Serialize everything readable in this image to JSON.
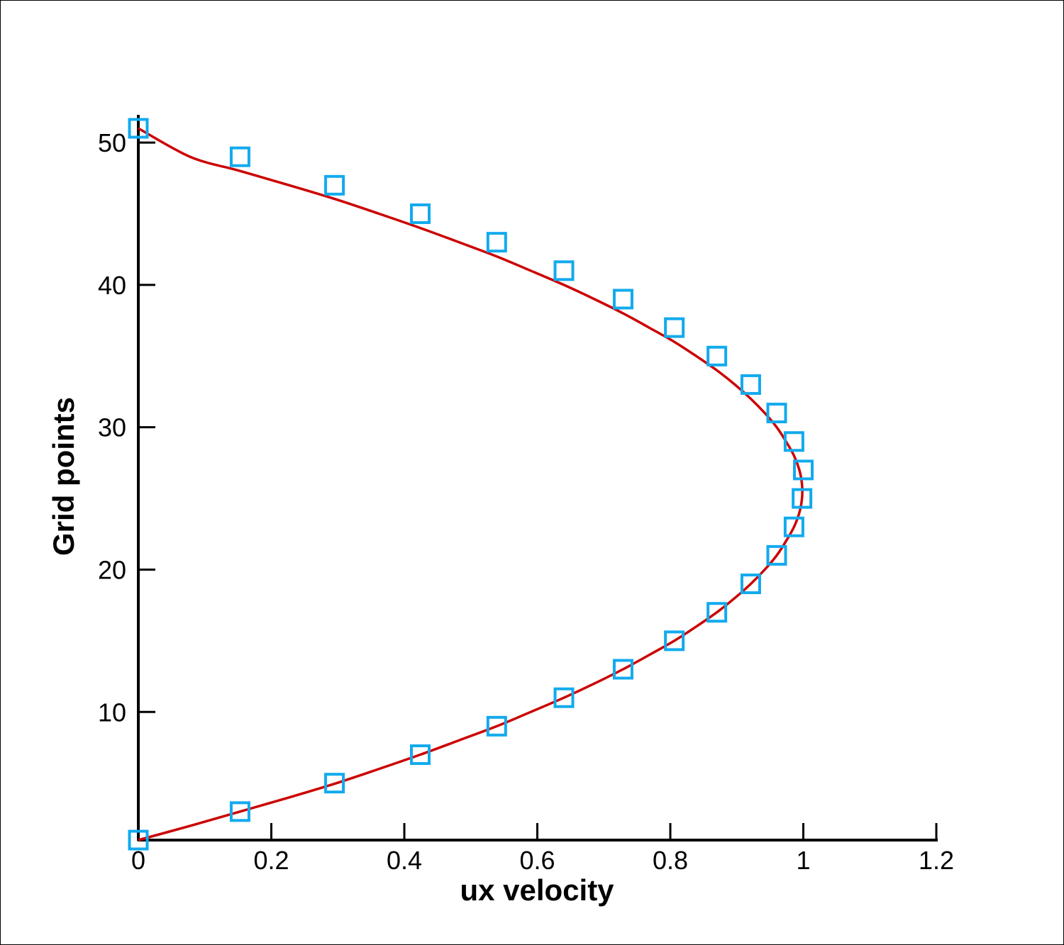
{
  "chart_data": {
    "type": "line",
    "title": "",
    "xlabel": "ux velocity",
    "ylabel": "Grid points",
    "xlim": [
      0,
      1.2
    ],
    "ylim": [
      1,
      52
    ],
    "x_ticks": [
      0,
      0.2,
      0.4,
      0.6,
      0.8,
      1.0,
      1.2
    ],
    "x_tick_labels": [
      "0",
      "0.2",
      "0.4",
      "0.6",
      "0.8",
      "1",
      "1.2"
    ],
    "y_ticks": [
      10,
      20,
      30,
      40,
      50
    ],
    "y_tick_labels": [
      "10",
      "20",
      "30",
      "40",
      "50"
    ],
    "grid": false,
    "legend": "none",
    "series": [
      {
        "kind": "line",
        "color": "#cc0000",
        "x": [
          0,
          0.078,
          0.153,
          0.227,
          0.298,
          0.362,
          0.424,
          0.482,
          0.539,
          0.59,
          0.64,
          0.686,
          0.729,
          0.768,
          0.806,
          0.839,
          0.87,
          0.897,
          0.921,
          0.942,
          0.96,
          0.974,
          0.986,
          0.994,
          0.998,
          0.998,
          0.994,
          0.986,
          0.974,
          0.96,
          0.942,
          0.921,
          0.897,
          0.87,
          0.839,
          0.806,
          0.768,
          0.729,
          0.686,
          0.64,
          0.59,
          0.539,
          0.482,
          0.424,
          0.362,
          0.298,
          0.227,
          0.153,
          0.078,
          0
        ],
        "y": [
          1,
          2,
          3,
          4,
          5,
          6,
          7,
          8,
          9,
          10,
          11,
          12,
          13,
          14,
          15,
          16,
          17,
          18,
          19,
          20,
          21,
          22,
          23,
          24,
          25,
          26,
          27,
          28,
          29,
          30,
          31,
          32,
          33,
          34,
          35,
          36,
          37,
          38,
          39,
          40,
          41,
          42,
          43,
          44,
          45,
          46,
          47,
          48,
          49,
          51
        ]
      },
      {
        "kind": "scatter",
        "marker": "square",
        "color": "#12aaee",
        "x": [
          0,
          0.153,
          0.295,
          0.424,
          0.539,
          0.64,
          0.729,
          0.806,
          0.87,
          0.921,
          0.96,
          0.986,
          0.998,
          1.0,
          0.986,
          0.96,
          0.921,
          0.87,
          0.806,
          0.729,
          0.64,
          0.539,
          0.424,
          0.295,
          0.153,
          0
        ],
        "y": [
          1,
          3,
          5,
          7,
          9,
          11,
          13,
          15,
          17,
          19,
          21,
          23,
          25,
          27,
          29,
          31,
          33,
          35,
          37,
          39,
          41,
          43,
          45,
          47,
          49,
          51
        ]
      }
    ]
  }
}
